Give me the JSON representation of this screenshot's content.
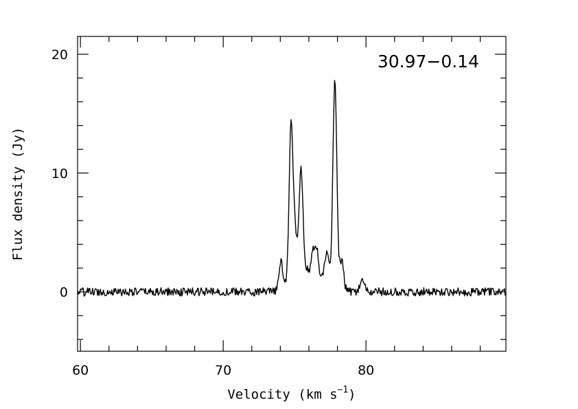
{
  "chart_data": {
    "type": "line",
    "title": "",
    "annotation": "30.97−0.14",
    "xlabel": "Velocity (km s",
    "xlabel_superscript": "−1",
    "xlabel_close": ")",
    "ylabel": "Flux density (Jy)",
    "xlim": [
      59.8,
      89.8
    ],
    "ylim": [
      -5,
      21.5
    ],
    "x_major_ticks": [
      60,
      70,
      80
    ],
    "x_minor_step": 2,
    "y_major_ticks": [
      0,
      10,
      20
    ],
    "y_minor_step": 2,
    "grid": false,
    "legend": "none",
    "series": [
      {
        "color": "#000000",
        "noise_amplitude": 0.35,
        "baseline": 0.0,
        "x_range": [
          59.8,
          89.8
        ],
        "peaks": [
          {
            "x": 74.05,
            "y": 2.6
          },
          {
            "x": 74.75,
            "y": 14.0
          },
          {
            "x": 75.05,
            "y": 4.3
          },
          {
            "x": 75.45,
            "y": 10.3
          },
          {
            "x": 75.8,
            "y": 1.5
          },
          {
            "x": 76.0,
            "y": 0.9
          },
          {
            "x": 76.3,
            "y": 3.3
          },
          {
            "x": 76.6,
            "y": 3.0
          },
          {
            "x": 77.05,
            "y": 1.4
          },
          {
            "x": 77.3,
            "y": 2.9
          },
          {
            "x": 77.82,
            "y": 17.8
          },
          {
            "x": 78.3,
            "y": 2.6
          },
          {
            "x": 79.75,
            "y": 1.1
          }
        ]
      }
    ]
  }
}
